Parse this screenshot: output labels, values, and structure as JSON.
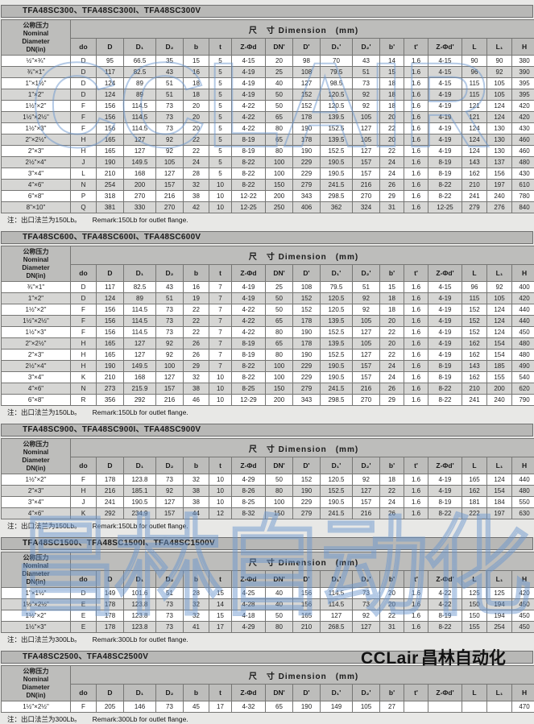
{
  "watermarks": {
    "top": "CCLAIR",
    "middle": "昌林自动化"
  },
  "logo": {
    "latin": "CCLair",
    "cn": "昌林自动化"
  },
  "table_header": {
    "nominal_lines": [
      "公称压力",
      "Nominal",
      "Diameter",
      "DN(in)"
    ],
    "dimension": "尺　寸  Dimension　(mm)",
    "columns": [
      "do",
      "D",
      "D₁",
      "D₂",
      "b",
      "t",
      "Z-Φd",
      "DN'",
      "D'",
      "D₁'",
      "D₂'",
      "b'",
      "t'",
      "Z-Φd'",
      "L",
      "L₁",
      "H"
    ]
  },
  "tables": [
    {
      "title": "TFA48SC300、TFA48SC300I、TFA48SC300V",
      "note_cn": "注：出口法兰为150Lb。",
      "note_en": "Remark:150Lb for outlet flange.",
      "rows": [
        [
          "½\"×¾\"",
          "D",
          "95",
          "66.5",
          "35",
          "15",
          "5",
          "4-15",
          "20",
          "98",
          "70",
          "43",
          "14",
          "1.6",
          "4-15",
          "90",
          "90",
          "380"
        ],
        [
          "¾\"×1\"",
          "D",
          "117",
          "82.5",
          "43",
          "16",
          "5",
          "4-19",
          "25",
          "108",
          "79.5",
          "51",
          "15",
          "1.6",
          "4-15",
          "96",
          "92",
          "390"
        ],
        [
          "1\"×1½\"",
          "D",
          "124",
          "89",
          "51",
          "18",
          "5",
          "4-19",
          "40",
          "127",
          "98.5",
          "73",
          "18",
          "1.6",
          "4-15",
          "115",
          "105",
          "395"
        ],
        [
          "1\"×2\"",
          "D",
          "124",
          "89",
          "51",
          "18",
          "5",
          "4-19",
          "50",
          "152",
          "120.5",
          "92",
          "18",
          "1.6",
          "4-19",
          "115",
          "105",
          "395"
        ],
        [
          "1½\"×2\"",
          "F",
          "156",
          "114.5",
          "73",
          "20",
          "5",
          "4-22",
          "50",
          "152",
          "120.5",
          "92",
          "18",
          "1.6",
          "4-19",
          "121",
          "124",
          "420"
        ],
        [
          "1½\"×2½\"",
          "F",
          "156",
          "114.5",
          "73",
          "20",
          "5",
          "4-22",
          "65",
          "178",
          "139.5",
          "105",
          "20",
          "1.6",
          "4-19",
          "121",
          "124",
          "420"
        ],
        [
          "1½\"×3\"",
          "F",
          "156",
          "114.5",
          "73",
          "20",
          "5",
          "4-22",
          "80",
          "190",
          "152.5",
          "127",
          "22",
          "1.6",
          "4-19",
          "124",
          "130",
          "430"
        ],
        [
          "2\"×2½\"",
          "H",
          "165",
          "127",
          "92",
          "22",
          "5",
          "8-19",
          "65",
          "178",
          "139.5",
          "105",
          "20",
          "1.6",
          "4-19",
          "124",
          "130",
          "460"
        ],
        [
          "2\"×3\"",
          "H",
          "165",
          "127",
          "92",
          "22",
          "5",
          "8-19",
          "80",
          "190",
          "152.5",
          "127",
          "22",
          "1.6",
          "4-19",
          "124",
          "130",
          "460"
        ],
        [
          "2½\"×4\"",
          "J",
          "190",
          "149.5",
          "105",
          "24",
          "5",
          "8-22",
          "100",
          "229",
          "190.5",
          "157",
          "24",
          "1.6",
          "8-19",
          "143",
          "137",
          "480"
        ],
        [
          "3\"×4\"",
          "L",
          "210",
          "168",
          "127",
          "28",
          "5",
          "8-22",
          "100",
          "229",
          "190.5",
          "157",
          "24",
          "1.6",
          "8-19",
          "162",
          "156",
          "430"
        ],
        [
          "4\"×6\"",
          "N",
          "254",
          "200",
          "157",
          "32",
          "10",
          "8-22",
          "150",
          "279",
          "241.5",
          "216",
          "26",
          "1.6",
          "8-22",
          "210",
          "197",
          "610"
        ],
        [
          "6\"×8\"",
          "P",
          "318",
          "270",
          "216",
          "38",
          "10",
          "12-22",
          "200",
          "343",
          "298.5",
          "270",
          "29",
          "1.6",
          "8-22",
          "241",
          "240",
          "780"
        ],
        [
          "8\"×10\"",
          "Q",
          "381",
          "330",
          "270",
          "42",
          "10",
          "12-25",
          "250",
          "406",
          "362",
          "324",
          "31",
          "1.6",
          "12-25",
          "279",
          "276",
          "840"
        ]
      ]
    },
    {
      "title": "TFA48SC600、TFA48SC600I、TFA48SC600V",
      "note_cn": "注：出口法兰为150Lb。",
      "note_en": "Remark:150Lb for outlet flange.",
      "rows": [
        [
          "¾\"×1\"",
          "D",
          "117",
          "82.5",
          "43",
          "16",
          "7",
          "4-19",
          "25",
          "108",
          "79.5",
          "51",
          "15",
          "1.6",
          "4-15",
          "96",
          "92",
          "400"
        ],
        [
          "1\"×2\"",
          "D",
          "124",
          "89",
          "51",
          "19",
          "7",
          "4-19",
          "50",
          "152",
          "120.5",
          "92",
          "18",
          "1.6",
          "4-19",
          "115",
          "105",
          "420"
        ],
        [
          "1½\"×2\"",
          "F",
          "156",
          "114.5",
          "73",
          "22",
          "7",
          "4-22",
          "50",
          "152",
          "120.5",
          "92",
          "18",
          "1.6",
          "4-19",
          "152",
          "124",
          "440"
        ],
        [
          "1½\"×2½\"",
          "F",
          "156",
          "114.5",
          "73",
          "22",
          "7",
          "4-22",
          "65",
          "178",
          "139.5",
          "105",
          "20",
          "1.6",
          "4-19",
          "152",
          "124",
          "440"
        ],
        [
          "1½\"×3\"",
          "F",
          "156",
          "114.5",
          "73",
          "22",
          "7",
          "4-22",
          "80",
          "190",
          "152.5",
          "127",
          "22",
          "1.6",
          "4-19",
          "152",
          "124",
          "450"
        ],
        [
          "2\"×2½\"",
          "H",
          "165",
          "127",
          "92",
          "26",
          "7",
          "8-19",
          "65",
          "178",
          "139.5",
          "105",
          "20",
          "1.6",
          "4-19",
          "162",
          "154",
          "480"
        ],
        [
          "2\"×3\"",
          "H",
          "165",
          "127",
          "92",
          "26",
          "7",
          "8-19",
          "80",
          "190",
          "152.5",
          "127",
          "22",
          "1.6",
          "4-19",
          "162",
          "154",
          "480"
        ],
        [
          "2½\"×4\"",
          "H",
          "190",
          "149.5",
          "100",
          "29",
          "7",
          "8-22",
          "100",
          "229",
          "190.5",
          "157",
          "24",
          "1.6",
          "8-19",
          "143",
          "185",
          "490"
        ],
        [
          "3\"×4\"",
          "K",
          "210",
          "168",
          "127",
          "32",
          "10",
          "8-22",
          "100",
          "229",
          "190.5",
          "157",
          "24",
          "1.6",
          "8-19",
          "162",
          "155",
          "540"
        ],
        [
          "4\"×6\"",
          "N",
          "273",
          "215.9",
          "157",
          "38",
          "10",
          "8-25",
          "150",
          "279",
          "241.5",
          "216",
          "26",
          "1.6",
          "8-22",
          "210",
          "200",
          "620"
        ],
        [
          "6\"×8\"",
          "R",
          "356",
          "292",
          "216",
          "46",
          "10",
          "12-29",
          "200",
          "343",
          "298.5",
          "270",
          "29",
          "1.6",
          "8-22",
          "241",
          "240",
          "790"
        ]
      ]
    },
    {
      "title": "TFA48SC900、TFA48SC900I、TFA48SC900V",
      "note_cn": "注：出口法兰为150Lb。",
      "note_en": "Remark:150Lb for outlet flange.",
      "rows": [
        [
          "1½\"×2\"",
          "F",
          "178",
          "123.8",
          "73",
          "32",
          "10",
          "4-29",
          "50",
          "152",
          "120.5",
          "92",
          "18",
          "1.6",
          "4-19",
          "165",
          "124",
          "440"
        ],
        [
          "2\"×3\"",
          "H",
          "216",
          "185.1",
          "92",
          "38",
          "10",
          "8-26",
          "80",
          "190",
          "152.5",
          "127",
          "22",
          "1.6",
          "4-19",
          "162",
          "154",
          "480"
        ],
        [
          "3\"×4\"",
          "J",
          "241",
          "190.5",
          "127",
          "38",
          "10",
          "8-25",
          "100",
          "229",
          "190.5",
          "157",
          "24",
          "1.6",
          "8-19",
          "181",
          "184",
          "550"
        ],
        [
          "4\"×6\"",
          "K",
          "292",
          "234.9",
          "157",
          "44",
          "12",
          "8-32",
          "150",
          "279",
          "241.5",
          "216",
          "26",
          "1.6",
          "8-22",
          "222",
          "197",
          "630"
        ]
      ]
    },
    {
      "title": "TFA48SC1500、TFA48SC1500I、TFA48SC1500V",
      "note_cn": "注：出口法兰为300Lb。",
      "note_en": "Remark:300Lb for outlet flange.",
      "rows": [
        [
          "1\"×1½\"",
          "D",
          "149",
          "101.6",
          "51",
          "28",
          "15",
          "4-25",
          "40",
          "156",
          "114.5",
          "73",
          "20",
          "1.6",
          "4-22",
          "125",
          "125",
          "420"
        ],
        [
          "1½\"×2½\"",
          "E",
          "178",
          "123.8",
          "73",
          "32",
          "14",
          "4-28",
          "40",
          "156",
          "114.5",
          "73",
          "20",
          "1.6",
          "4-22",
          "150",
          "194",
          "450"
        ],
        [
          "1½\"×2\"",
          "E",
          "178",
          "123.8",
          "73",
          "32",
          "15",
          "4-18",
          "50",
          "165",
          "127",
          "92",
          "22",
          "1.6",
          "8-19",
          "150",
          "194",
          "450"
        ],
        [
          "1½\"×3\"",
          "E",
          "178",
          "123.8",
          "73",
          "41",
          "17",
          "4-29",
          "80",
          "210",
          "268.5",
          "127",
          "31",
          "1.6",
          "8-22",
          "155",
          "254",
          "450"
        ]
      ]
    },
    {
      "title": "TFA48SC2500、TFA48SC2500V",
      "note_cn": "注：出口法兰为300Lb。",
      "note_en": "Remark:300Lb for outlet flange.",
      "rows": [
        [
          "1½\"×2½\"",
          "F",
          "205",
          "146",
          "73",
          "45",
          "17",
          "4-32",
          "65",
          "190",
          "149",
          "105",
          "27",
          "",
          "",
          "",
          "",
          "470"
        ]
      ]
    }
  ]
}
